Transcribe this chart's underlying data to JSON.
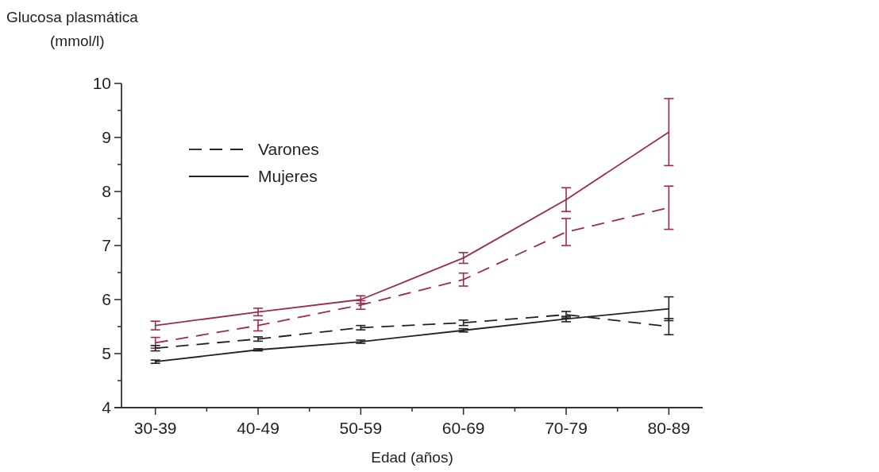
{
  "chart_data": {
    "type": "line",
    "ylabel": "Glucosa plasmática\n(mmol/l)",
    "xlabel": "Edad (años)",
    "categories": [
      "30-39",
      "40-49",
      "50-59",
      "60-69",
      "70-79",
      "80-89"
    ],
    "ylim": [
      4,
      10
    ],
    "yticks": [
      4,
      {
        "value": 4.5,
        "label": null
      },
      5,
      {
        "value": 5.5,
        "label": null
      },
      6,
      {
        "value": 6.5,
        "label": null
      },
      7,
      {
        "value": 7.5,
        "label": null
      },
      8,
      {
        "value": 8.5,
        "label": null
      },
      9,
      {
        "value": 9.5,
        "label": null
      },
      10
    ],
    "legend": "top left",
    "grid": false,
    "marker": "none",
    "series": [
      {
        "color": "#9b2d4a",
        "line_style": "solid",
        "values": [
          5.52,
          5.77,
          6.0,
          6.77,
          7.85,
          9.1
        ],
        "errors": [
          0.08,
          0.07,
          0.07,
          0.1,
          0.22,
          0.62
        ]
      },
      {
        "color": "#9b2d4a",
        "line_style": "dashed",
        "values": [
          5.2,
          5.52,
          5.9,
          6.37,
          7.25,
          7.7
        ],
        "errors": [
          0.1,
          0.1,
          0.08,
          0.12,
          0.25,
          0.4
        ]
      },
      {
        "name": "Varones",
        "color": "#222222",
        "line_style": "dashed",
        "values": [
          5.1,
          5.27,
          5.48,
          5.57,
          5.72,
          5.5
        ],
        "errors": [
          0.05,
          0.04,
          0.04,
          0.05,
          0.06,
          0.15
        ]
      },
      {
        "name": "Mujeres",
        "color": "#222222",
        "line_style": "solid",
        "values": [
          4.85,
          5.07,
          5.22,
          5.43,
          5.64,
          5.83
        ],
        "errors": [
          0.03,
          0.02,
          0.03,
          0.03,
          0.05,
          0.22
        ]
      }
    ]
  }
}
